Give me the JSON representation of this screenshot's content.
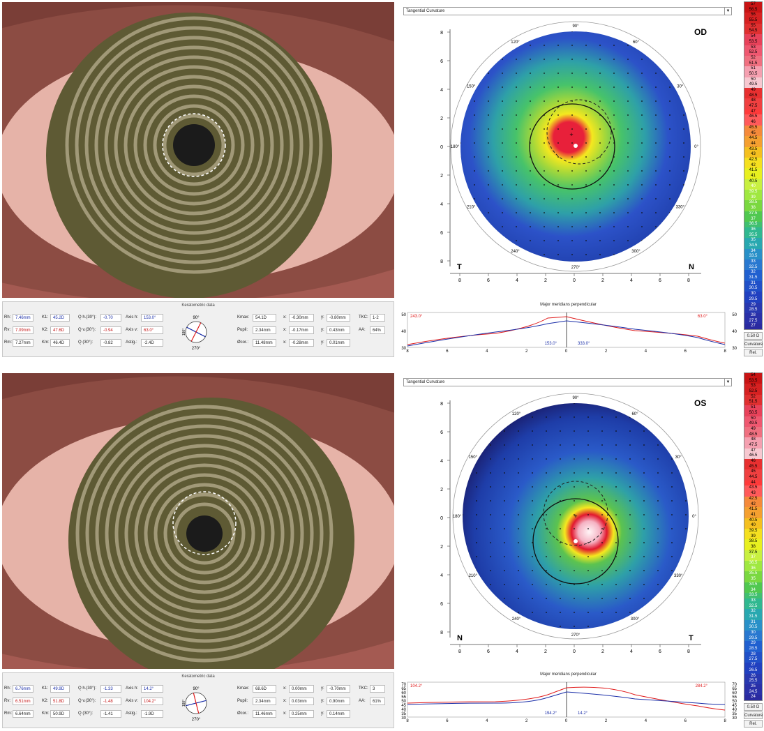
{
  "panels": [
    {
      "eye_label": "OD",
      "left_corner": "T",
      "right_corner": "N",
      "map_dropdown": "Tangential Curvature",
      "keratometric": {
        "title": "Keratometric data",
        "rh": {
          "label": "Rh:",
          "value": "7.46mm"
        },
        "rv": {
          "label": "Rv:",
          "value": "7.09mm"
        },
        "rm": {
          "label": "Rm:",
          "value": "7.27mm"
        },
        "k1": {
          "label": "K1:",
          "value": "45.2D"
        },
        "k2": {
          "label": "K2:",
          "value": "47.6D"
        },
        "km": {
          "label": "Km:",
          "value": "46.4D"
        },
        "qh": {
          "label": "Q h.(30°):",
          "value": "-0.70"
        },
        "qv": {
          "label": "Q v.(30°):",
          "value": "-0.94"
        },
        "q": {
          "label": "Q (30°):",
          "value": "-0.82"
        },
        "axish": {
          "label": "Axis h:",
          "value": "153.0°"
        },
        "axisv": {
          "label": "Axis v:",
          "value": "63.0°"
        },
        "astig": {
          "label": "Astig.:",
          "value": "-2.4D"
        },
        "mini_top": "90°",
        "mini_bottom": "270°",
        "mini_left": "180°",
        "kmax": {
          "label": "Kmax:",
          "value": "54.1D"
        },
        "pupil": {
          "label": "Pupil:",
          "value": "2.34mm"
        },
        "ocor": {
          "label": "Øcor.:",
          "value": "11.48mm"
        },
        "x1": {
          "label": "x:",
          "value": "-0.30mm"
        },
        "x2": {
          "label": "x:",
          "value": "-0.17mm"
        },
        "x3": {
          "label": "x:",
          "value": "-0.28mm"
        },
        "y1": {
          "label": "y:",
          "value": "-0.80mm"
        },
        "y2": {
          "label": "y:",
          "value": "0.43mm"
        },
        "y3": {
          "label": "y:",
          "value": "0.01mm"
        },
        "tkc": {
          "label": "TKC:",
          "value": "1-2"
        },
        "aa": {
          "label": "AA:",
          "value": "64%"
        }
      },
      "meridians": {
        "title": "Major meridians perpendicular",
        "left_angle": "243.0°",
        "right_angle": "63.0°",
        "center_left": "153.0°",
        "center_right": "333.0°",
        "yticks": [
          "50",
          "40",
          "30"
        ]
      },
      "scale": [
        "57",
        "56.5",
        "56",
        "55.5",
        "55",
        "54.5",
        "54",
        "53.5",
        "53",
        "52.5",
        "52",
        "51.5",
        "51",
        "50.5",
        "50",
        "49.5",
        "49",
        "48.5",
        "48",
        "47.5",
        "47",
        "46.5",
        "46",
        "45.5",
        "45",
        "44.5",
        "44",
        "43.5",
        "43",
        "42.5",
        "42",
        "41.5",
        "41",
        "40.5",
        "40",
        "39.5",
        "39",
        "38.5",
        "38",
        "37.5",
        "37",
        "36.5",
        "36",
        "35.5",
        "35",
        "34.5",
        "34",
        "33.5",
        "33",
        "32.5",
        "32",
        "31.5",
        "31",
        "30.5",
        "30",
        "29.5",
        "29",
        "28.5",
        "28",
        "27.5",
        "27"
      ],
      "buttons": [
        "0.50 D",
        "Curvature",
        "Rel."
      ]
    },
    {
      "eye_label": "OS",
      "left_corner": "N",
      "right_corner": "T",
      "map_dropdown": "Tangential Curvature",
      "keratometric": {
        "title": "Keratometric data",
        "rh": {
          "label": "Rh:",
          "value": "6.76mm"
        },
        "rv": {
          "label": "Rv:",
          "value": "6.51mm"
        },
        "rm": {
          "label": "Rm:",
          "value": "6.64mm"
        },
        "k1": {
          "label": "K1:",
          "value": "49.9D"
        },
        "k2": {
          "label": "K2:",
          "value": "51.8D"
        },
        "km": {
          "label": "Km:",
          "value": "50.9D"
        },
        "qh": {
          "label": "Q h.(30°):",
          "value": "-1.33"
        },
        "qv": {
          "label": "Q v.(30°):",
          "value": "-1.48"
        },
        "q": {
          "label": "Q (30°):",
          "value": "-1.41"
        },
        "axish": {
          "label": "Axis h:",
          "value": "14.2°"
        },
        "axisv": {
          "label": "Axis v:",
          "value": "104.2°"
        },
        "astig": {
          "label": "Astig.:",
          "value": "-1.9D"
        },
        "mini_top": "90°",
        "mini_bottom": "270°",
        "mini_left": "180°",
        "kmax": {
          "label": "Kmax:",
          "value": "68.6D"
        },
        "pupil": {
          "label": "Pupil:",
          "value": "2.34mm"
        },
        "ocor": {
          "label": "Øcor.:",
          "value": "11.46mm"
        },
        "x1": {
          "label": "x:",
          "value": "0.00mm"
        },
        "x2": {
          "label": "x:",
          "value": "0.03mm"
        },
        "x3": {
          "label": "x:",
          "value": "0.25mm"
        },
        "y1": {
          "label": "y:",
          "value": "-0.70mm"
        },
        "y2": {
          "label": "y:",
          "value": "0.90mm"
        },
        "y3": {
          "label": "y:",
          "value": "0.14mm"
        },
        "tkc": {
          "label": "TKC:",
          "value": "3"
        },
        "aa": {
          "label": "AA:",
          "value": "61%"
        }
      },
      "meridians": {
        "title": "Major meridians perpendicular",
        "left_angle": "104.2°",
        "right_angle": "284.2°",
        "center_left": "194.2°",
        "center_right": "14.2°",
        "yticks": [
          "70",
          "65",
          "60",
          "55",
          "50",
          "45",
          "40",
          "35",
          "30"
        ]
      },
      "scale": [
        "54",
        "53.5",
        "53",
        "52.5",
        "52",
        "51.5",
        "51",
        "50.5",
        "50",
        "49.5",
        "49",
        "48.5",
        "48",
        "47.5",
        "47",
        "46.5",
        "46",
        "45.5",
        "45",
        "44.5",
        "44",
        "43.5",
        "43",
        "42.5",
        "42",
        "41.5",
        "41",
        "40.5",
        "40",
        "39.5",
        "39",
        "38.5",
        "38",
        "37.5",
        "37",
        "36.5",
        "36",
        "35.5",
        "35",
        "34.5",
        "34",
        "33.5",
        "33",
        "32.5",
        "32",
        "31.5",
        "31",
        "30.5",
        "30",
        "29.5",
        "29",
        "28.5",
        "28",
        "27.5",
        "27",
        "26.5",
        "26",
        "25.5",
        "25",
        "24.5",
        "24"
      ],
      "buttons": [
        "0.50 D",
        "Curvature",
        "Rel."
      ]
    }
  ],
  "axis": {
    "yticks": [
      "8",
      "6",
      "4",
      "2",
      "0",
      "2",
      "4",
      "6",
      "8"
    ],
    "xticks": [
      "8",
      "6",
      "4",
      "2",
      "0",
      "2",
      "4",
      "6",
      "8"
    ],
    "deg90": "90°",
    "deg270": "270°",
    "deg0": "0°",
    "deg180": "180°",
    "deg30": "30°",
    "deg60": "60°",
    "deg120": "120°",
    "deg150": "150°",
    "deg210": "210°",
    "deg240": "240°",
    "deg300": "300°",
    "deg330": "330°"
  },
  "colors": {
    "red": "#e01a1a",
    "blue": "#1a2ea8",
    "scale_top": "#c81a1a",
    "scale_bottom": "#2a2aa0"
  }
}
